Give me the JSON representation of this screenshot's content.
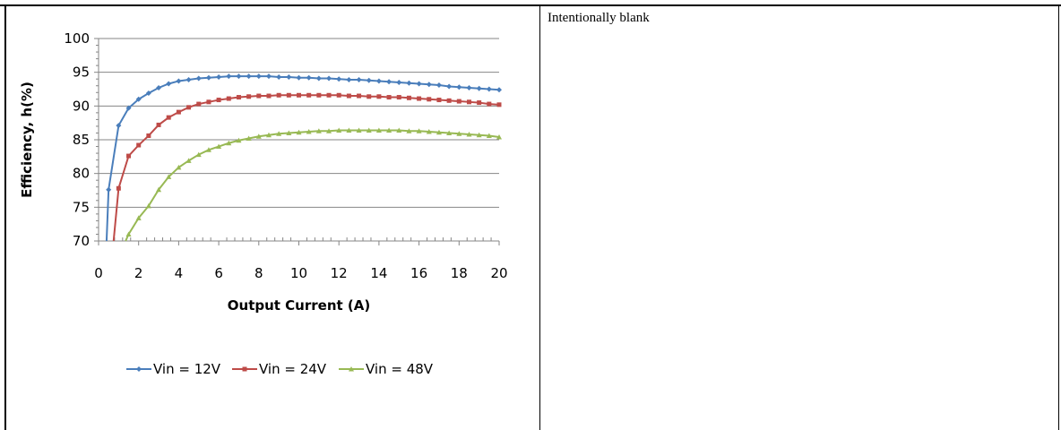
{
  "right_panel": {
    "text": "Intentionally blank"
  },
  "chart_data": {
    "type": "line",
    "title": "",
    "xlabel": "Output Current (A)",
    "ylabel": "Efficiency, h(%)",
    "xlim": [
      0,
      20
    ],
    "ylim": [
      70,
      100
    ],
    "xticks": [
      0,
      2,
      4,
      6,
      8,
      10,
      12,
      14,
      16,
      18,
      20
    ],
    "yticks": [
      70,
      75,
      80,
      85,
      90,
      95,
      100
    ],
    "grid": true,
    "legend_position": "bottom",
    "series": [
      {
        "name": "Vin = 12V",
        "color": "#4a7ebb",
        "marker": "diamond",
        "x": [
          0.5,
          1,
          1.5,
          2,
          2.5,
          3,
          3.5,
          4,
          4.5,
          5,
          5.5,
          6,
          6.5,
          7,
          7.5,
          8,
          8.5,
          9,
          9.5,
          10,
          10.5,
          11,
          11.5,
          12,
          12.5,
          13,
          13.5,
          14,
          14.5,
          15,
          15.5,
          16,
          16.5,
          17,
          17.5,
          18,
          18.5,
          19,
          19.5,
          20
        ],
        "y": [
          77.6,
          87.1,
          89.7,
          91.0,
          91.9,
          92.7,
          93.3,
          93.7,
          93.9,
          94.1,
          94.2,
          94.3,
          94.4,
          94.4,
          94.4,
          94.4,
          94.4,
          94.3,
          94.3,
          94.2,
          94.2,
          94.1,
          94.1,
          94.0,
          93.9,
          93.9,
          93.8,
          93.7,
          93.6,
          93.5,
          93.4,
          93.3,
          93.2,
          93.1,
          92.9,
          92.8,
          92.7,
          92.6,
          92.5,
          92.4
        ]
      },
      {
        "name": "Vin = 24V",
        "color": "#be4b48",
        "marker": "square",
        "x": [
          1,
          1.5,
          2,
          2.5,
          3,
          3.5,
          4,
          4.5,
          5,
          5.5,
          6,
          6.5,
          7,
          7.5,
          8,
          8.5,
          9,
          9.5,
          10,
          10.5,
          11,
          11.5,
          12,
          12.5,
          13,
          13.5,
          14,
          14.5,
          15,
          15.5,
          16,
          16.5,
          17,
          17.5,
          18,
          18.5,
          19,
          19.5,
          20
        ],
        "y": [
          77.8,
          82.6,
          84.2,
          85.6,
          87.2,
          88.3,
          89.1,
          89.8,
          90.3,
          90.6,
          90.9,
          91.1,
          91.3,
          91.4,
          91.5,
          91.5,
          91.6,
          91.6,
          91.6,
          91.6,
          91.6,
          91.6,
          91.6,
          91.5,
          91.5,
          91.4,
          91.4,
          91.3,
          91.3,
          91.2,
          91.1,
          91.0,
          90.9,
          90.8,
          90.7,
          90.6,
          90.5,
          90.3,
          90.2
        ]
      },
      {
        "name": "Vin = 48V",
        "color": "#98b954",
        "marker": "triangle",
        "x": [
          1.5,
          2,
          2.5,
          3,
          3.5,
          4,
          4.5,
          5,
          5.5,
          6,
          6.5,
          7,
          7.5,
          8,
          8.5,
          9,
          9.5,
          10,
          10.5,
          11,
          11.5,
          12,
          12.5,
          13,
          13.5,
          14,
          14.5,
          15,
          15.5,
          16,
          16.5,
          17,
          17.5,
          18,
          18.5,
          19,
          19.5,
          20
        ],
        "y": [
          71.0,
          73.4,
          75.2,
          77.6,
          79.5,
          80.9,
          81.9,
          82.8,
          83.5,
          84.0,
          84.5,
          84.9,
          85.2,
          85.5,
          85.7,
          85.9,
          86.0,
          86.1,
          86.2,
          86.3,
          86.3,
          86.4,
          86.4,
          86.4,
          86.4,
          86.4,
          86.4,
          86.4,
          86.3,
          86.3,
          86.2,
          86.1,
          86.0,
          85.9,
          85.8,
          85.7,
          85.6,
          85.4
        ]
      }
    ]
  }
}
